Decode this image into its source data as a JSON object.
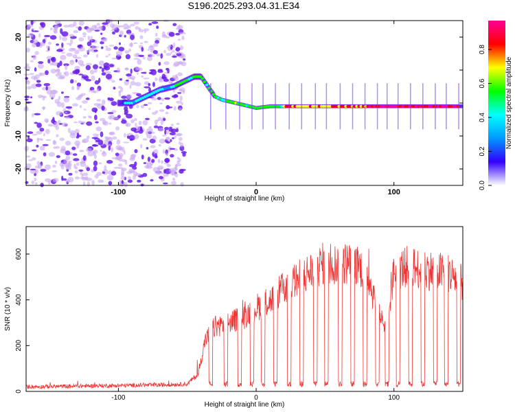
{
  "title": "S196.2025.293.04.31.E34",
  "chart_data": [
    {
      "type": "heatmap",
      "name": "spectrogram",
      "xlabel": "Height of straight line (km)",
      "ylabel": "Frequency (Hz)",
      "xlim": [
        -167,
        150
      ],
      "ylim": [
        -25,
        25
      ],
      "xticks": [
        -100,
        0,
        100
      ],
      "yticks": [
        -20,
        -10,
        0,
        10,
        20
      ],
      "colorbar": {
        "label": "Normalized spectral amplitude",
        "range": [
          0.0,
          0.97
        ],
        "ticks": [
          "0.0",
          "0.2",
          "0.4",
          "0.6",
          "0.8"
        ],
        "colors": [
          "#ffffff",
          "#3300ff",
          "#0099ff",
          "#00ffff",
          "#00ff00",
          "#ffff00",
          "#ff0000",
          "#ff0099"
        ]
      },
      "ridge": {
        "x": [
          -100,
          -90,
          -80,
          -70,
          -60,
          -50,
          -45,
          -40,
          -35,
          -30,
          -25,
          -20,
          -10,
          0,
          10,
          150
        ],
        "y": [
          0,
          0,
          2,
          4,
          5,
          7,
          8,
          8,
          5,
          2,
          1,
          0.5,
          -0.5,
          -1.5,
          -1,
          -1
        ]
      },
      "noise_region": {
        "x_from": -167,
        "x_to": -52
      }
    },
    {
      "type": "line",
      "name": "snr",
      "xlabel": "Height of straight line (km)",
      "ylabel": "SNR (10 * v/v)",
      "xlim": [
        -167,
        150
      ],
      "ylim": [
        0,
        720
      ],
      "xticks": [
        -100,
        0,
        100
      ],
      "yticks": [
        0,
        200,
        400,
        600
      ],
      "color": "#ee3333",
      "baseline_level": 20,
      "envelope": {
        "x": [
          -167,
          -70,
          -50,
          -42,
          -37,
          -30,
          -20,
          -10,
          0,
          10,
          20,
          30,
          40,
          50,
          60,
          70,
          80,
          88,
          95,
          100,
          110,
          120,
          130,
          140,
          150
        ],
        "y": [
          20,
          28,
          32,
          80,
          240,
          300,
          320,
          340,
          390,
          420,
          480,
          520,
          560,
          600,
          590,
          600,
          560,
          380,
          300,
          560,
          580,
          570,
          560,
          550,
          500
        ]
      },
      "dropouts_x": [
        -33,
        -22,
        -12,
        -3,
        5,
        14,
        24,
        33,
        43,
        51,
        61,
        70,
        79,
        88,
        95,
        103,
        112,
        121,
        130,
        138,
        147
      ]
    }
  ]
}
